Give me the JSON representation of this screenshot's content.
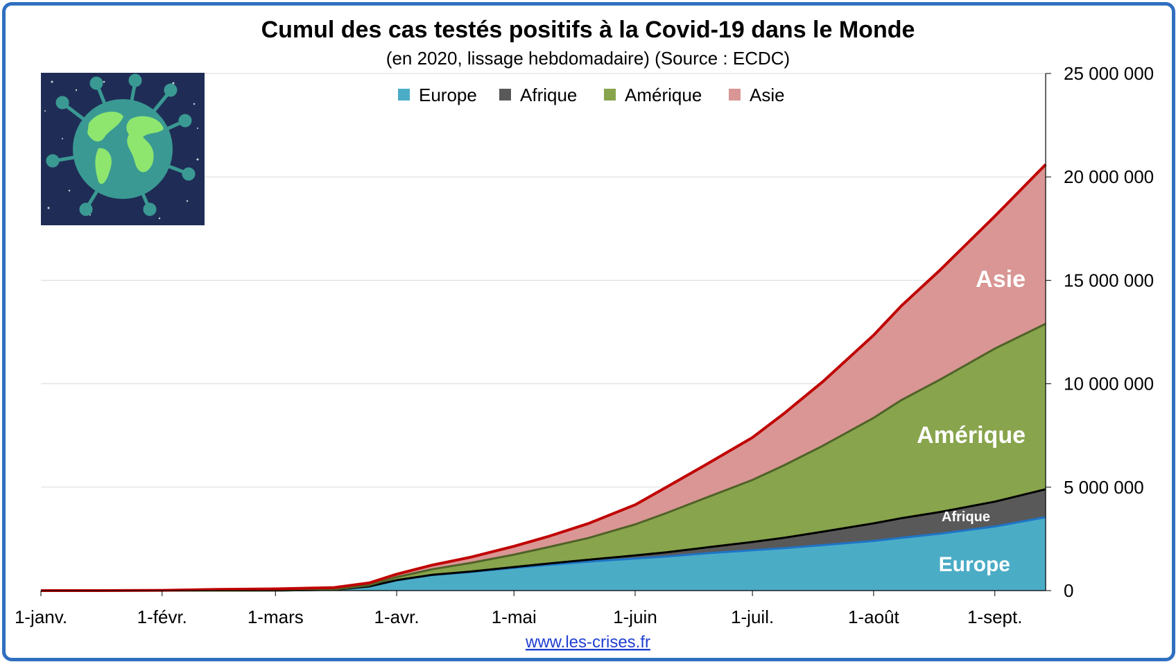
{
  "title": "Cumul des cas testés positifs à la Covid-19 dans le Monde",
  "subtitle": "(en 2020, lissage hebdomadaire) (Source : ECDC)",
  "source_link": "www.les-crises.fr",
  "image": {
    "icon": "globe-virus-icon"
  },
  "colors": {
    "europe_fill": "#4bacc6",
    "europe_line": "#1f74c6",
    "afrique_fill": "#595959",
    "afrique_line": "#000000",
    "amerique_fill": "#88a44c",
    "amerique_line": "#4f6228",
    "asie_fill": "#d99694",
    "asie_line": "#c00000",
    "frame": "#2f6fbf",
    "grid": "#d9d9d9"
  },
  "chart_data": {
    "type": "area",
    "stacked": true,
    "title": "Cumul des cas testés positifs à la Covid-19 dans le Monde",
    "subtitle": "(en 2020, lissage hebdomadaire) (Source : ECDC)",
    "x_tick_labels": [
      "1-janv.",
      "1-févr.",
      "1-mars",
      "1-avr.",
      "1-mai",
      "1-juin",
      "1-juil.",
      "1-août",
      "1-sept."
    ],
    "x_tick_days": [
      0,
      31,
      60,
      91,
      121,
      152,
      182,
      213,
      244
    ],
    "x_range_days": [
      0,
      257
    ],
    "y_ticks": [
      0,
      5000000,
      10000000,
      15000000,
      20000000,
      25000000
    ],
    "y_tick_labels": [
      "0",
      "5 000 000",
      "10 000 000",
      "15 000 000",
      "20 000 000",
      "25 000 000"
    ],
    "ylim": [
      0,
      25000000
    ],
    "y_axis_side": "right",
    "grid": true,
    "legend_position": "top-center",
    "x": [
      0,
      14,
      31,
      45,
      60,
      75,
      84,
      91,
      100,
      110,
      121,
      130,
      140,
      152,
      160,
      170,
      182,
      190,
      200,
      213,
      220,
      230,
      244,
      257
    ],
    "series": [
      {
        "name": "Europe",
        "label": "Europe",
        "values": [
          0,
          0,
          0,
          1000,
          3000,
          40000,
          200000,
          500000,
          750000,
          900000,
          1100000,
          1250000,
          1400000,
          1550000,
          1650000,
          1800000,
          1950000,
          2050000,
          2200000,
          2400000,
          2550000,
          2750000,
          3100000,
          3550000
        ]
      },
      {
        "name": "Afrique",
        "label": "Afrique",
        "values": [
          0,
          0,
          0,
          0,
          100,
          1000,
          3000,
          5000,
          10000,
          20000,
          40000,
          60000,
          90000,
          150000,
          200000,
          280000,
          400000,
          500000,
          650000,
          850000,
          950000,
          1050000,
          1200000,
          1350000
        ]
      },
      {
        "name": "Amérique",
        "label": "Amérique",
        "values": [
          0,
          0,
          0,
          0,
          100,
          10000,
          60000,
          150000,
          270000,
          420000,
          600000,
          800000,
          1050000,
          1500000,
          1900000,
          2400000,
          3000000,
          3500000,
          4150000,
          5100000,
          5700000,
          6400000,
          7400000,
          8000000
        ]
      },
      {
        "name": "Asie",
        "label": "Asie",
        "values": [
          0,
          1000,
          12000,
          60000,
          80000,
          95000,
          110000,
          140000,
          200000,
          280000,
          400000,
          520000,
          700000,
          950000,
          1250000,
          1600000,
          2050000,
          2500000,
          3100000,
          4000000,
          4550000,
          5300000,
          6400000,
          7700000
        ]
      }
    ],
    "area_labels": [
      "Asie",
      "Amérique",
      "Afrique",
      "Europe"
    ]
  }
}
